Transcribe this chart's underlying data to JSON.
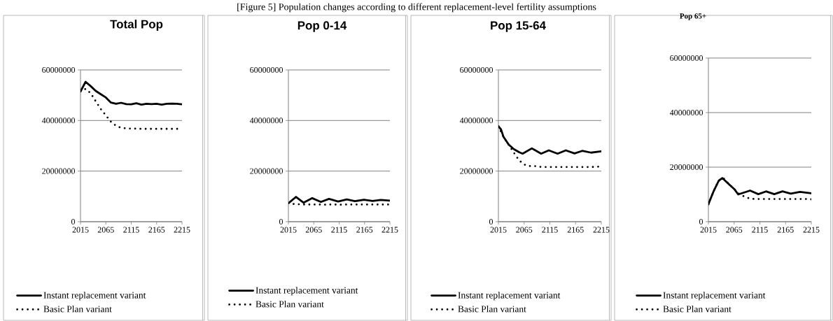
{
  "chart_data": [
    {
      "type": "line",
      "title": "Total Pop",
      "annotations": [
        "[Figure 5] Population changes according to different replacement-level fertility assumptions"
      ],
      "x": [
        2015,
        2025,
        2035,
        2045,
        2055,
        2065,
        2075,
        2085,
        2095,
        2105,
        2115,
        2125,
        2135,
        2145,
        2155,
        2165,
        2175,
        2185,
        2195,
        2205,
        2215
      ],
      "series": [
        {
          "name": "Instant replacement variant",
          "color": "#000000",
          "line_style": "solid",
          "values": [
            51500000,
            55300000,
            53600000,
            51700000,
            50400000,
            49100000,
            47100000,
            46600000,
            47000000,
            46500000,
            46400000,
            46800000,
            46300000,
            46600000,
            46500000,
            46600000,
            46300000,
            46600000,
            46700000,
            46600000,
            46400000
          ]
        },
        {
          "name": "Basic Plan variant",
          "color": "#000000",
          "line_style": "dotted",
          "values": [
            51500000,
            52500000,
            50800000,
            47600000,
            44500000,
            42000000,
            39500000,
            37900000,
            37100000,
            36900000,
            36800000,
            36800000,
            36700000,
            36700000,
            36700000,
            36700000,
            36700000,
            36700000,
            36700000,
            36700000,
            36700000
          ]
        }
      ],
      "xlim": [
        2015,
        2215
      ],
      "xticks": [
        2015,
        2065,
        2115,
        2165,
        2215
      ],
      "ylim": [
        0,
        60000000
      ],
      "yticks": [
        0,
        20000000,
        40000000,
        60000000
      ],
      "grid": "y",
      "legend": "bottom"
    },
    {
      "type": "line",
      "title": "Pop 0-14",
      "x": [
        2015,
        2025,
        2035,
        2045,
        2055,
        2065,
        2075,
        2085,
        2095,
        2105,
        2115,
        2125,
        2135,
        2145,
        2155,
        2165,
        2175,
        2185,
        2195,
        2205,
        2215
      ],
      "series": [
        {
          "name": "Instant replacement variant",
          "color": "#000000",
          "line_style": "solid",
          "x": [
            2015,
            2030,
            2045,
            2062,
            2079,
            2095,
            2113,
            2130,
            2146,
            2164,
            2181,
            2197,
            2215
          ],
          "values": [
            7300000,
            9800000,
            7500000,
            9300000,
            7800000,
            9000000,
            8000000,
            8800000,
            8100000,
            8700000,
            8200000,
            8600000,
            8300000
          ]
        },
        {
          "name": "Basic Plan variant",
          "color": "#000000",
          "line_style": "dotted",
          "values": [
            7300000,
            7000000,
            6900000,
            6800000,
            6800000,
            6800000,
            6800000,
            6700000,
            6800000,
            6800000,
            6700000,
            6800000,
            6800000,
            6800000,
            6800000,
            6800000,
            6800000,
            6800000,
            6800000,
            6800000,
            6800000
          ]
        }
      ],
      "xlim": [
        2015,
        2215
      ],
      "xticks": [
        2015,
        2065,
        2115,
        2165,
        2215
      ],
      "ylim": [
        0,
        60000000
      ],
      "yticks": [
        0,
        20000000,
        40000000,
        60000000
      ],
      "grid": "y",
      "legend": "bottom"
    },
    {
      "type": "line",
      "title": "Pop 15-64",
      "x": [
        2015,
        2025,
        2035,
        2045,
        2055,
        2065,
        2075,
        2085,
        2095,
        2105,
        2115,
        2125,
        2135,
        2145,
        2155,
        2165,
        2175,
        2185,
        2195,
        2205,
        2215
      ],
      "series": [
        {
          "name": "Instant replacement variant",
          "color": "#000000",
          "line_style": "solid",
          "x": [
            2015,
            2020,
            2025,
            2035,
            2045,
            2055,
            2062,
            2080,
            2098,
            2113,
            2130,
            2146,
            2163,
            2178,
            2195,
            2215
          ],
          "values": [
            37700000,
            36500000,
            33500000,
            30500000,
            28700000,
            27500000,
            26900000,
            29000000,
            26900000,
            28200000,
            26900000,
            28200000,
            27000000,
            28000000,
            27300000,
            27800000
          ]
        },
        {
          "name": "Basic Plan variant",
          "color": "#000000",
          "line_style": "dotted",
          "values": [
            37700000,
            33500000,
            30400000,
            27300000,
            24300000,
            22600000,
            22000000,
            22000000,
            21700000,
            21600000,
            21600000,
            21600000,
            21600000,
            21600000,
            21600000,
            21600000,
            21600000,
            21600000,
            21600000,
            21700000,
            21800000
          ]
        }
      ],
      "xlim": [
        2015,
        2215
      ],
      "xticks": [
        2015,
        2065,
        2115,
        2165,
        2215
      ],
      "ylim": [
        0,
        60000000
      ],
      "yticks": [
        0,
        20000000,
        40000000,
        60000000
      ],
      "grid": "y",
      "legend": "bottom"
    },
    {
      "type": "line",
      "title": "Pop 65+",
      "x": [
        2015,
        2025,
        2035,
        2045,
        2055,
        2065,
        2075,
        2085,
        2095,
        2105,
        2115,
        2125,
        2135,
        2145,
        2155,
        2165,
        2175,
        2185,
        2195,
        2205,
        2215
      ],
      "series": [
        {
          "name": "Instant replacement variant",
          "color": "#000000",
          "line_style": "solid",
          "x": [
            2015,
            2025,
            2035,
            2042,
            2055,
            2065,
            2073,
            2096,
            2112,
            2127,
            2143,
            2159,
            2175,
            2193,
            2215
          ],
          "values": [
            6400000,
            11100000,
            15000000,
            16000000,
            13700000,
            12000000,
            10000000,
            11400000,
            10100000,
            11100000,
            10100000,
            11100000,
            10300000,
            10900000,
            10400000
          ]
        },
        {
          "name": "Basic Plan variant",
          "color": "#000000",
          "line_style": "dotted",
          "values": [
            6400000,
            11100000,
            15000000,
            15800000,
            13700000,
            12000000,
            10100000,
            9200000,
            8500000,
            8300000,
            8300000,
            8300000,
            8300000,
            8300000,
            8300000,
            8300000,
            8300000,
            8300000,
            8300000,
            8300000,
            8200000
          ]
        }
      ],
      "xlim": [
        2015,
        2215
      ],
      "xticks": [
        2015,
        2065,
        2115,
        2165,
        2215
      ],
      "ylim": [
        0,
        60000000
      ],
      "yticks": [
        0,
        20000000,
        40000000,
        60000000
      ],
      "grid": "y",
      "legend": "bottom"
    }
  ]
}
